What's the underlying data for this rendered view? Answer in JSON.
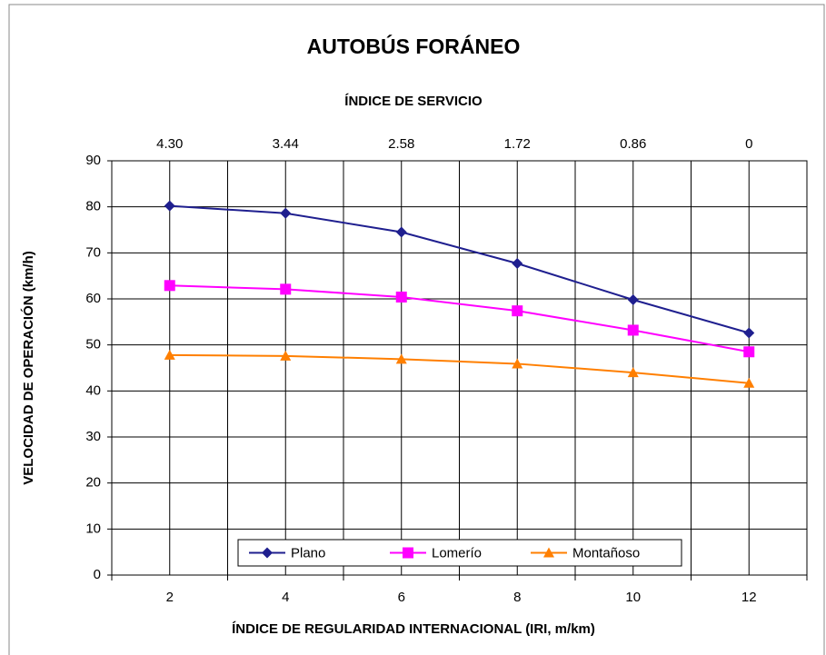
{
  "chart_data": {
    "type": "line",
    "title": "AUTOBÚS FORÁNEO",
    "x_label": "ÍNDICE DE REGULARIDAD INTERNACIONAL (IRI, m/km)",
    "y_label": "VELOCIDAD DE OPERACIÓN (km/h)",
    "x": [
      2,
      4,
      6,
      8,
      10,
      12
    ],
    "series": [
      {
        "name": "Plano",
        "color": "#1f1f8f",
        "marker": "diamond",
        "values": [
          80.2,
          78.6,
          74.5,
          67.7,
          59.8,
          52.6
        ]
      },
      {
        "name": "Lomerío",
        "color": "#ff00ff",
        "marker": "square",
        "values": [
          62.9,
          62.1,
          60.4,
          57.4,
          53.2,
          48.5
        ]
      },
      {
        "name": "Montañoso",
        "color": "#ff7f00",
        "marker": "triangle",
        "values": [
          47.8,
          47.6,
          46.9,
          45.9,
          44.0,
          41.7
        ]
      }
    ],
    "xlim": [
      1,
      13
    ],
    "xticks": [
      2,
      4,
      6,
      8,
      10,
      12
    ],
    "xminor_ticks": [
      1,
      3,
      5,
      7,
      9,
      11,
      13
    ],
    "ylim": [
      0,
      90
    ],
    "yticks": [
      0,
      10,
      20,
      30,
      40,
      50,
      60,
      70,
      80,
      90
    ],
    "grid": true,
    "legend": "bottom",
    "top_axis": {
      "title": "ÍNDICE DE SERVICIO",
      "ticks": [
        {
          "value": 2,
          "label": "4.30"
        },
        {
          "value": 4,
          "label": "3.44"
        },
        {
          "value": 6,
          "label": "2.58"
        },
        {
          "value": 8,
          "label": "1.72"
        },
        {
          "value": 10,
          "label": "0.86"
        },
        {
          "value": 12,
          "label": "0"
        }
      ]
    }
  }
}
